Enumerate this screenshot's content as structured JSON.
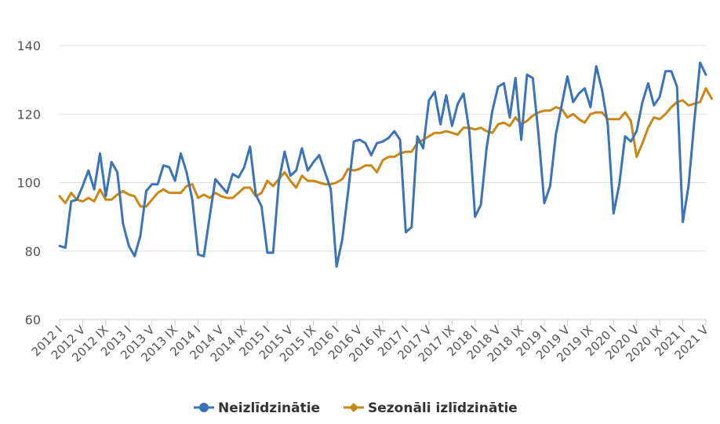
{
  "chart_data": {
    "type": "line",
    "title": "",
    "xlabel": "",
    "ylabel": "",
    "ylim": [
      60,
      140
    ],
    "yticks": [
      60,
      80,
      100,
      120,
      140
    ],
    "grid": true,
    "legend_position": "bottom",
    "x_labels": [
      {
        "index": 0,
        "label": "2012 I"
      },
      {
        "index": 4,
        "label": "2012 V"
      },
      {
        "index": 8,
        "label": "2012 IX"
      },
      {
        "index": 12,
        "label": "2013 I"
      },
      {
        "index": 16,
        "label": "2013 V"
      },
      {
        "index": 20,
        "label": "2013 IX"
      },
      {
        "index": 24,
        "label": "2014 I"
      },
      {
        "index": 28,
        "label": "2014 V"
      },
      {
        "index": 32,
        "label": "2014 IX"
      },
      {
        "index": 36,
        "label": "2015 I"
      },
      {
        "index": 40,
        "label": "2015 V"
      },
      {
        "index": 44,
        "label": "2015 IX"
      },
      {
        "index": 48,
        "label": "2016 I"
      },
      {
        "index": 52,
        "label": "2016 V"
      },
      {
        "index": 56,
        "label": "2016 IX"
      },
      {
        "index": 60,
        "label": "2017 I"
      },
      {
        "index": 64,
        "label": "2017 V"
      },
      {
        "index": 68,
        "label": "2017 IX"
      },
      {
        "index": 72,
        "label": "2018 I"
      },
      {
        "index": 76,
        "label": "2018 V"
      },
      {
        "index": 80,
        "label": "2018 IX"
      },
      {
        "index": 84,
        "label": "2019 I"
      },
      {
        "index": 88,
        "label": "2019 V"
      },
      {
        "index": 92,
        "label": "2019 IX"
      },
      {
        "index": 96,
        "label": "2020 I"
      },
      {
        "index": 100,
        "label": "2020 V"
      },
      {
        "index": 104,
        "label": "2020 IX"
      },
      {
        "index": 108,
        "label": "2021 I"
      },
      {
        "index": 112,
        "label": "2021 V"
      }
    ],
    "series": [
      {
        "name": "Neizlīdzinātie",
        "color": "#3a73b8",
        "values": [
          81.5,
          81,
          94.5,
          95,
          99,
          103.5,
          98,
          108.5,
          96,
          106,
          103,
          88,
          81.5,
          78.5,
          84.5,
          97.5,
          99.5,
          99.5,
          105,
          104.5,
          100.5,
          108.5,
          103,
          95,
          79,
          78.5,
          90,
          101,
          99,
          97,
          102.5,
          101.5,
          104.5,
          110.5,
          96.5,
          93,
          79.5,
          79.5,
          100.5,
          109,
          102,
          103.5,
          110,
          103.5,
          106,
          108,
          103,
          98,
          75.5,
          83.5,
          97.5,
          112,
          112.5,
          111.5,
          108,
          111.5,
          112,
          113,
          115,
          112.5,
          85.5,
          87,
          113.5,
          110,
          124,
          126.5,
          117,
          125.5,
          116.5,
          123,
          126,
          115,
          90,
          93.5,
          110,
          121,
          128,
          129,
          119,
          130.5,
          112.5,
          131.5,
          130.5,
          114,
          94,
          99,
          114,
          122.5,
          131,
          123.5,
          126,
          127.5,
          122,
          134,
          127,
          117,
          91,
          99.5,
          113.5,
          112,
          115,
          123.5,
          129,
          122.5,
          125,
          132.5,
          132.5,
          128,
          88.5,
          99,
          118,
          135,
          131.5
        ]
      },
      {
        "name": "Sezonāli izlīdzinātie",
        "color": "#c98714",
        "values": [
          96,
          94,
          97,
          95,
          94.5,
          95.5,
          94.5,
          98,
          95,
          95,
          96.5,
          97.5,
          96.5,
          96,
          93,
          93,
          95,
          97,
          98,
          97,
          97,
          97,
          99,
          99.5,
          95.5,
          96.5,
          95.5,
          97,
          96,
          95.5,
          95.5,
          97,
          98.5,
          98.5,
          96,
          97,
          100.5,
          99,
          101,
          103,
          100.5,
          98.5,
          102,
          100.5,
          100.5,
          100,
          99.5,
          99.5,
          100,
          101,
          104,
          103.5,
          104,
          105,
          105,
          103,
          106.5,
          107.5,
          107.5,
          108.5,
          109,
          109,
          111.5,
          112.5,
          113.5,
          114.5,
          114.5,
          115,
          114.5,
          114,
          116,
          116,
          115.5,
          116,
          115,
          114.5,
          117,
          117.5,
          116.5,
          119,
          117,
          118,
          119.5,
          120.5,
          121,
          121,
          122,
          121.5,
          119,
          120,
          118.5,
          117.5,
          120,
          120.5,
          120.5,
          118.5,
          118.5,
          118.5,
          120.5,
          118,
          107.5,
          111.5,
          116,
          119,
          118.5,
          120,
          122,
          123.5,
          124,
          122.5,
          123,
          123.5,
          127.5,
          124.5
        ]
      }
    ]
  }
}
